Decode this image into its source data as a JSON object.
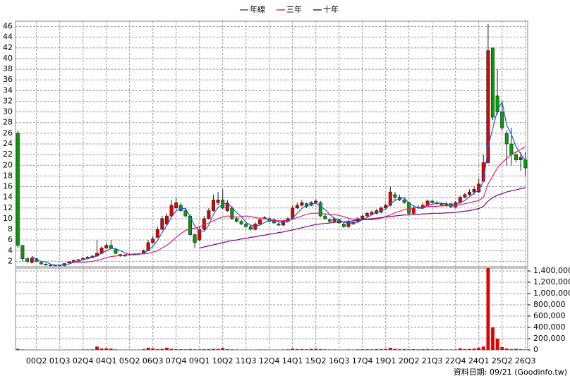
{
  "chart_data": {
    "type": "candlestick",
    "grid": true,
    "up_color": "#e00000",
    "down_color": "#00a000",
    "categories": [
      null,
      null,
      null,
      null,
      "00Q2",
      null,
      null,
      null,
      null,
      "01Q3",
      null,
      null,
      null,
      null,
      "02Q4",
      null,
      null,
      null,
      null,
      "04Q1",
      null,
      null,
      null,
      null,
      "05Q2",
      null,
      null,
      null,
      null,
      "06Q3",
      null,
      null,
      null,
      null,
      "07Q4",
      null,
      null,
      null,
      null,
      "09Q1",
      null,
      null,
      null,
      null,
      "10Q2",
      null,
      null,
      null,
      null,
      "11Q3",
      null,
      null,
      null,
      null,
      "12Q4",
      null,
      null,
      null,
      null,
      "14Q1",
      null,
      null,
      null,
      null,
      "15Q2",
      null,
      null,
      null,
      null,
      "16Q3",
      null,
      null,
      null,
      null,
      "17Q4",
      null,
      null,
      null,
      null,
      "19Q1",
      null,
      null,
      null,
      null,
      "20Q2",
      null,
      null,
      null,
      null,
      "21Q3",
      null,
      null,
      null,
      null,
      "22Q4",
      null,
      null,
      null,
      null,
      "24Q1",
      null,
      null,
      null,
      null,
      "25Q2",
      null,
      null,
      null,
      null,
      "26Q3"
    ],
    "open": [
      26,
      5,
      2.5,
      1.8,
      2.5,
      1.8,
      1.5,
      1.3,
      1.3,
      1.2,
      1.2,
      1.7,
      2,
      2.2,
      2.4,
      2.6,
      2.7,
      3,
      3.5,
      4.5,
      5,
      4.2,
      3.3,
      3,
      3.2,
      3.3,
      3.3,
      3.5,
      4,
      5.5,
      6.5,
      8,
      9,
      10.5,
      12,
      12.5,
      11.5,
      10.5,
      7,
      6,
      8,
      10,
      11.5,
      13,
      13.5,
      11.5,
      12,
      10,
      9.5,
      9,
      8.5,
      8,
      9,
      10,
      10,
      9.8,
      9,
      8.8,
      9.5,
      10,
      12,
      12.5,
      12.8,
      12.5,
      13,
      13,
      10.5,
      9.8,
      9.5,
      9.8,
      9,
      8.5,
      9,
      9.5,
      10,
      10.5,
      10.8,
      11,
      11.2,
      12,
      12.5,
      14.5,
      14,
      13.5,
      13,
      11,
      12.2,
      12,
      12.5,
      13.3,
      13,
      12.8,
      12.5,
      12.8,
      12.2,
      13,
      14,
      14.5,
      15,
      15,
      17,
      20.5,
      42,
      33,
      30,
      26,
      24,
      22,
      21,
      21
    ],
    "high": [
      26.5,
      5,
      2.8,
      2.8,
      2.6,
      1.9,
      1.6,
      1.4,
      1.4,
      1.4,
      1.7,
      2.0,
      2.3,
      2.5,
      2.7,
      3.0,
      3.1,
      6.0,
      4.8,
      5.5,
      6.0,
      4.3,
      3.4,
      3.4,
      3.5,
      3.5,
      3.6,
      4.2,
      6.0,
      6.8,
      8.5,
      10.5,
      11.0,
      13.5,
      14.0,
      13.0,
      12.0,
      10.8,
      7.2,
      8.5,
      10.5,
      12.0,
      14.5,
      15.0,
      15.5,
      13.5,
      12.3,
      10.3,
      9.8,
      9.3,
      8.8,
      9.3,
      10.0,
      10.5,
      10.3,
      10.0,
      9.3,
      9.8,
      10.3,
      12.5,
      13.0,
      13.5,
      13.0,
      13.3,
      13.6,
      13.3,
      10.8,
      10.0,
      10.3,
      10.0,
      9.2,
      9.8,
      9.6,
      10.3,
      10.8,
      11.3,
      11.5,
      11.8,
      12.3,
      12.8,
      16.0,
      15.0,
      14.5,
      13.8,
      13.2,
      12.5,
      12.5,
      13.0,
      13.6,
      13.5,
      13.3,
      13.0,
      13.2,
      13.0,
      13.3,
      14.3,
      14.8,
      15.5,
      16.0,
      17.5,
      22.0,
      46.5,
      42.0,
      38.0,
      32.0,
      26.5,
      27.0,
      22.5,
      22.5,
      22.5
    ],
    "low": [
      4.5,
      2.0,
      1.8,
      1.6,
      1.9,
      1.4,
      1.2,
      1.1,
      1.1,
      1.1,
      1.1,
      1.6,
      1.9,
      2.1,
      2.3,
      2.5,
      2.6,
      2.9,
      3.4,
      4.3,
      4.3,
      3.4,
      2.9,
      2.9,
      3.1,
      3.2,
      3.2,
      3.4,
      3.9,
      5.3,
      6.3,
      7.8,
      8.8,
      10.3,
      11.8,
      11.3,
      10.3,
      6.8,
      4.5,
      5.8,
      7.8,
      9.8,
      11.3,
      12.5,
      11.8,
      11.3,
      9.8,
      9.3,
      8.8,
      8.3,
      7.8,
      7.8,
      8.8,
      9.8,
      9.3,
      9.0,
      8.6,
      8.6,
      9.3,
      9.8,
      11.8,
      12.3,
      12.0,
      12.3,
      12.8,
      10.3,
      9.8,
      9.3,
      9.3,
      9.0,
      8.3,
      8.3,
      8.8,
      9.3,
      9.8,
      10.3,
      10.6,
      10.8,
      11.0,
      11.8,
      12.3,
      13.5,
      13.3,
      12.8,
      10.8,
      10.8,
      11.8,
      11.8,
      12.3,
      12.8,
      12.6,
      12.3,
      12.3,
      12.0,
      12.0,
      12.8,
      13.8,
      14.3,
      14.5,
      14.8,
      16.8,
      20.3,
      28.5,
      29.5,
      26.5,
      20.0,
      20.0,
      20.5,
      19.0,
      18.0
    ],
    "close": [
      5,
      2.5,
      2,
      2.6,
      2,
      1.5,
      1.3,
      1.3,
      1.2,
      1.3,
      1.6,
      1.9,
      2.2,
      2.3,
      2.6,
      2.8,
      3,
      3.5,
      4.5,
      5,
      4.5,
      3.5,
      3,
      3.2,
      3.3,
      3.3,
      3.4,
      4,
      5.5,
      6.2,
      8,
      10,
      10.5,
      12.5,
      13,
      11.5,
      10.5,
      7,
      5.5,
      8,
      10,
      11.5,
      13.5,
      13.5,
      12,
      13,
      10,
      9.5,
      9,
      8.5,
      8,
      9,
      9.8,
      10.2,
      9.5,
      9.2,
      8.8,
      9.5,
      10,
      12,
      12.5,
      13,
      12.3,
      13,
      13.3,
      10.5,
      10,
      9.5,
      10,
      9.2,
      8.5,
      9.5,
      9.3,
      10,
      10.5,
      11,
      11.2,
      11.5,
      12,
      12.5,
      15,
      14,
      13.5,
      13,
      11,
      12,
      12,
      12.5,
      13.3,
      13,
      12.8,
      12.5,
      12.8,
      12.2,
      13,
      14,
      14.5,
      15,
      15.5,
      16.5,
      20.5,
      41.5,
      29,
      30,
      27,
      24,
      22,
      21,
      21.5,
      19.5
    ],
    "series": [
      {
        "name": "年線",
        "color": "#1f5fd0",
        "values": [
          null,
          null,
          null,
          3.0,
          2.3,
          2.0,
          1.9,
          1.5,
          1.3,
          1.3,
          1.4,
          1.5,
          1.8,
          2.0,
          2.3,
          2.5,
          2.7,
          3.0,
          3.5,
          4.0,
          4.4,
          4.4,
          4.0,
          3.6,
          3.3,
          3.2,
          3.3,
          3.5,
          4.1,
          4.8,
          5.9,
          7.4,
          8.7,
          10.3,
          11.5,
          11.9,
          11.9,
          10.5,
          8.6,
          7.8,
          7.6,
          8.8,
          10.8,
          12.1,
          12.6,
          13.0,
          12.1,
          11.1,
          10.4,
          9.3,
          8.8,
          8.6,
          8.8,
          9.3,
          9.6,
          9.7,
          9.4,
          9.3,
          9.4,
          10.1,
          11.0,
          11.9,
          12.5,
          12.7,
          12.9,
          12.3,
          11.7,
          10.8,
          10.0,
          9.7,
          9.3,
          9.3,
          9.1,
          9.3,
          9.8,
          10.2,
          10.7,
          11.1,
          11.4,
          11.8,
          12.8,
          13.4,
          13.8,
          13.9,
          12.9,
          12.4,
          12.0,
          11.9,
          12.5,
          12.7,
          12.9,
          12.9,
          12.8,
          12.6,
          12.6,
          13.0,
          13.4,
          14.1,
          14.8,
          15.4,
          16.9,
          23.5,
          26.9,
          30.3,
          31.9,
          27.5,
          25.8,
          23.5,
          22.1,
          21.0
        ]
      },
      {
        "name": "三年",
        "color": "#e0206a",
        "values": [
          null,
          null,
          null,
          null,
          null,
          null,
          null,
          null,
          null,
          null,
          null,
          2.0,
          1.8,
          1.8,
          1.8,
          1.9,
          2.0,
          2.2,
          2.4,
          2.7,
          2.9,
          3.0,
          3.1,
          3.2,
          3.3,
          3.4,
          3.4,
          3.4,
          3.5,
          3.7,
          4.0,
          4.5,
          5.0,
          5.7,
          6.5,
          7.2,
          7.8,
          8.1,
          8.2,
          8.5,
          8.8,
          9.2,
          9.6,
          10.0,
          10.3,
          10.5,
          10.4,
          10.3,
          10.4,
          10.5,
          10.4,
          10.2,
          10.1,
          10.0,
          9.8,
          9.7,
          9.6,
          9.6,
          9.7,
          9.9,
          10.2,
          10.5,
          10.8,
          11.0,
          11.0,
          11.0,
          10.9,
          10.8,
          10.8,
          10.6,
          10.4,
          10.1,
          9.9,
          9.8,
          9.8,
          9.8,
          9.8,
          9.9,
          10.1,
          10.4,
          10.7,
          11.1,
          11.4,
          11.7,
          11.9,
          12.0,
          12.1,
          12.2,
          12.3,
          12.3,
          12.3,
          12.4,
          12.4,
          12.5,
          12.5,
          12.6,
          12.8,
          13.0,
          13.2,
          13.4,
          14.0,
          16.5,
          18.0,
          19.5,
          20.5,
          21.3,
          22.0,
          22.5,
          23.0,
          23.5
        ]
      },
      {
        "name": "十年",
        "color": "#800080",
        "values": [
          null,
          null,
          null,
          null,
          null,
          null,
          null,
          null,
          null,
          null,
          null,
          null,
          null,
          null,
          null,
          null,
          null,
          null,
          null,
          null,
          null,
          null,
          null,
          null,
          null,
          null,
          null,
          null,
          null,
          null,
          null,
          null,
          null,
          null,
          null,
          null,
          null,
          null,
          null,
          4.5,
          4.7,
          4.9,
          5.1,
          5.3,
          5.5,
          5.7,
          5.9,
          6.0,
          6.2,
          6.3,
          6.5,
          6.6,
          6.8,
          6.9,
          7.1,
          7.2,
          7.4,
          7.5,
          7.7,
          7.9,
          8.1,
          8.3,
          8.5,
          8.7,
          8.9,
          9.0,
          9.1,
          9.2,
          9.3,
          9.4,
          9.4,
          9.5,
          9.6,
          9.7,
          9.8,
          9.9,
          10.0,
          10.1,
          10.2,
          10.3,
          10.4,
          10.5,
          10.6,
          10.7,
          10.7,
          10.8,
          10.8,
          10.9,
          10.9,
          11.0,
          11.0,
          11.0,
          11.1,
          11.1,
          11.2,
          11.3,
          11.4,
          11.5,
          11.7,
          11.9,
          12.3,
          13.3,
          13.9,
          14.4,
          14.7,
          15.0,
          15.2,
          15.4,
          15.6,
          15.8
        ]
      }
    ],
    "ylim": [
      1,
      47
    ],
    "yticks": [
      2,
      4,
      6,
      8,
      10,
      12,
      14,
      16,
      18,
      20,
      22,
      24,
      26,
      28,
      30,
      32,
      34,
      36,
      38,
      40,
      42,
      44,
      46
    ],
    "volume": {
      "color": "#e00000",
      "values": [
        20000,
        8000,
        5000,
        5000,
        4000,
        3000,
        3000,
        3000,
        3000,
        3000,
        4000,
        5000,
        5000,
        6000,
        8000,
        8000,
        10000,
        60000,
        25000,
        30000,
        25000,
        10000,
        6000,
        5000,
        5000,
        5000,
        6000,
        15000,
        40000,
        30000,
        15000,
        20000,
        40000,
        20000,
        15000,
        12000,
        10000,
        15000,
        10000,
        10000,
        12000,
        15000,
        20000,
        20000,
        35000,
        15000,
        10000,
        8000,
        6000,
        6000,
        5000,
        6000,
        8000,
        8000,
        6000,
        5000,
        5000,
        8000,
        10000,
        25000,
        15000,
        15000,
        12000,
        20000,
        20000,
        15000,
        10000,
        8000,
        8000,
        6000,
        6000,
        8000,
        6000,
        10000,
        12000,
        12000,
        10000,
        15000,
        15000,
        20000,
        40000,
        20000,
        15000,
        15000,
        12000,
        15000,
        10000,
        12000,
        15000,
        10000,
        10000,
        10000,
        8000,
        8000,
        10000,
        30000,
        15000,
        20000,
        25000,
        40000,
        60000,
        1450000,
        400000,
        200000,
        50000,
        25000,
        15000,
        20000,
        12000,
        8000
      ],
      "ylim": [
        0,
        1450000
      ],
      "yticks": [
        0,
        {
          "value": 200000,
          "label": "200,000"
        },
        {
          "value": 400000,
          "label": "400,000"
        },
        {
          "value": 600000,
          "label": "600,000"
        },
        {
          "value": 800000,
          "label": "800,000"
        },
        {
          "value": 1000000,
          "label": "1,000,000"
        },
        {
          "value": 1200000,
          "label": "1,200,000"
        },
        {
          "value": 1400000,
          "label": "1,400,000"
        }
      ]
    },
    "footer": "資料日期: 09/21 (Goodinfo.tw)"
  }
}
